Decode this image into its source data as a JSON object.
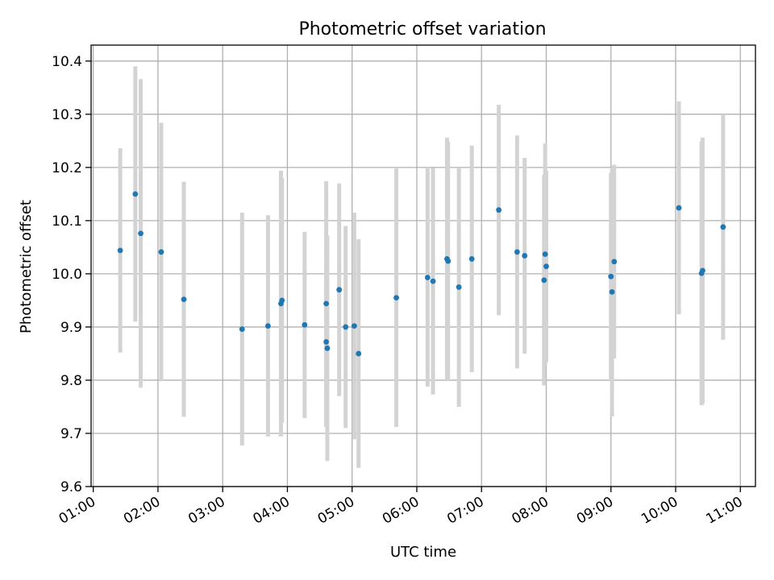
{
  "chart_data": {
    "type": "scatter",
    "title": "Photometric offset variation",
    "xlabel": "UTC time",
    "ylabel": "Photometric offset",
    "x_ticks": [
      "01:00",
      "02:00",
      "03:00",
      "04:00",
      "05:00",
      "06:00",
      "07:00",
      "08:00",
      "09:00",
      "10:00",
      "11:00"
    ],
    "y_ticks": [
      "9.6",
      "9.7",
      "9.8",
      "9.9",
      "10.0",
      "10.1",
      "10.2",
      "10.3",
      "10.4"
    ],
    "xlim": [
      "00:58",
      "11:14"
    ],
    "ylim": [
      9.6,
      10.43
    ],
    "grid": true,
    "colors": {
      "point": "#1f77b4",
      "error_bar": "#d3d3d3",
      "grid": "#b0b0b0"
    },
    "points": [
      {
        "t": "01:25",
        "y": 10.044,
        "err": 0.192
      },
      {
        "t": "01:39",
        "y": 10.15,
        "err": 0.24
      },
      {
        "t": "01:44",
        "y": 10.076,
        "err": 0.29
      },
      {
        "t": "02:03",
        "y": 10.041,
        "err": 0.243
      },
      {
        "t": "02:24",
        "y": 9.952,
        "err": 0.221
      },
      {
        "t": "03:18",
        "y": 9.896,
        "err": 0.219
      },
      {
        "t": "03:42",
        "y": 9.902,
        "err": 0.208
      },
      {
        "t": "03:54",
        "y": 9.944,
        "err": 0.25
      },
      {
        "t": "03:55",
        "y": 9.95,
        "err": 0.23
      },
      {
        "t": "04:16",
        "y": 9.904,
        "err": 0.175
      },
      {
        "t": "04:36",
        "y": 9.944,
        "err": 0.23
      },
      {
        "t": "04:36",
        "y": 9.872,
        "err": 0.16
      },
      {
        "t": "04:37",
        "y": 9.86,
        "err": 0.212
      },
      {
        "t": "04:48",
        "y": 9.97,
        "err": 0.2
      },
      {
        "t": "04:54",
        "y": 9.9,
        "err": 0.19
      },
      {
        "t": "05:02",
        "y": 9.902,
        "err": 0.213
      },
      {
        "t": "05:06",
        "y": 9.85,
        "err": 0.215
      },
      {
        "t": "05:41",
        "y": 9.955,
        "err": 0.243
      },
      {
        "t": "06:10",
        "y": 9.993,
        "err": 0.205
      },
      {
        "t": "06:15",
        "y": 9.986,
        "err": 0.213
      },
      {
        "t": "06:28",
        "y": 10.028,
        "err": 0.228
      },
      {
        "t": "06:29",
        "y": 10.024,
        "err": 0.224
      },
      {
        "t": "06:39",
        "y": 9.975,
        "err": 0.225
      },
      {
        "t": "06:51",
        "y": 10.028,
        "err": 0.213
      },
      {
        "t": "07:16",
        "y": 10.12,
        "err": 0.198
      },
      {
        "t": "07:33",
        "y": 10.041,
        "err": 0.219
      },
      {
        "t": "07:40",
        "y": 10.034,
        "err": 0.184
      },
      {
        "t": "07:58",
        "y": 9.988,
        "err": 0.198
      },
      {
        "t": "07:59",
        "y": 10.037,
        "err": 0.208
      },
      {
        "t": "08:00",
        "y": 10.014,
        "err": 0.18
      },
      {
        "t": "09:00",
        "y": 9.995,
        "err": 0.195
      },
      {
        "t": "09:01",
        "y": 9.966,
        "err": 0.234
      },
      {
        "t": "09:03",
        "y": 10.023,
        "err": 0.182
      },
      {
        "t": "10:03",
        "y": 10.124,
        "err": 0.2
      },
      {
        "t": "10:24",
        "y": 10.001,
        "err": 0.248
      },
      {
        "t": "10:25",
        "y": 10.006,
        "err": 0.25
      },
      {
        "t": "10:44",
        "y": 10.088,
        "err": 0.212
      }
    ]
  }
}
